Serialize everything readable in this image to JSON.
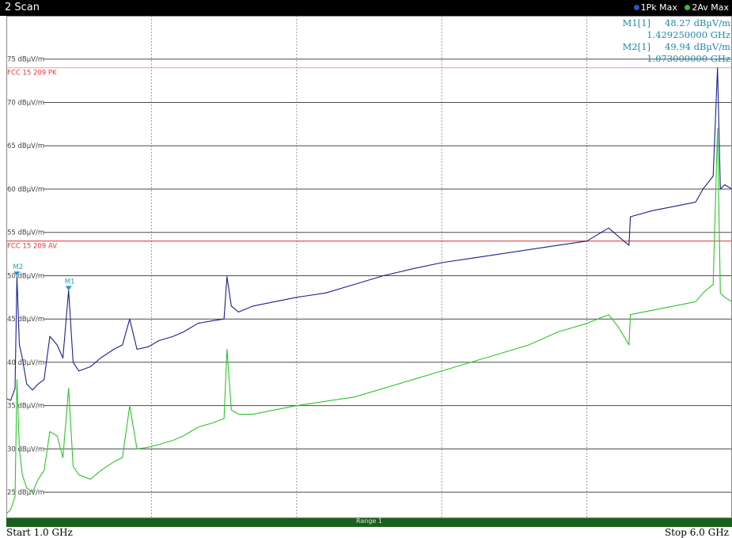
{
  "window": {
    "title": "2 Scan"
  },
  "legend": [
    {
      "label": "1Pk Max",
      "color": "#2d55c8"
    },
    {
      "label": "2Av Max",
      "color": "#35b835"
    }
  ],
  "markers": [
    {
      "label": "M1[1]",
      "level": "48.27 dBµV/m",
      "frequency": "1.429250000 GHz"
    },
    {
      "label": "M2[1]",
      "level": "49.94 dBµV/m",
      "frequency": "1.073000000 GHz"
    }
  ],
  "footer": {
    "start": "Start 1.0 GHz",
    "stop": "Stop 6.0 GHz",
    "range": "Range 1"
  },
  "colors": {
    "peak_trace": "#1a1f8c",
    "avg_trace": "#2ec42e",
    "limit_line": "#e03a3a",
    "marker": "#1e9fc0",
    "grid": "#555555"
  },
  "chart_data": {
    "type": "line",
    "xlabel": "",
    "ylabel": "",
    "xlim": [
      1.0,
      6.0
    ],
    "x_unit": "GHz",
    "ylim": [
      22,
      80
    ],
    "y_unit": "dBµV/m",
    "yticks": [
      75,
      70,
      65,
      60,
      55,
      50,
      45,
      40,
      35,
      30,
      25
    ],
    "ytick_labels": [
      "75 dBµV/m",
      "70 dBµV/m",
      "65 dBµV/m",
      "60 dBµV/m",
      "55 dBµV/m",
      "50 dBµV/m",
      "45 dBµV/m",
      "40 dBµV/m",
      "35 dBµV/m",
      "30 dBµV/m",
      "25 dBµV/m"
    ],
    "grid": true,
    "limit_lines": [
      {
        "name": "FCC 15 209 PK",
        "value": 74
      },
      {
        "name": "FCC 15 209 AV",
        "value": 54
      }
    ],
    "markers": [
      {
        "name": "M1",
        "x": 1.42925,
        "y": 48.27
      },
      {
        "name": "M2",
        "x": 1.073,
        "y": 49.94
      }
    ],
    "series": [
      {
        "name": "1Pk Max",
        "x": [
          1.0,
          1.03,
          1.06,
          1.073,
          1.09,
          1.11,
          1.14,
          1.18,
          1.22,
          1.26,
          1.3,
          1.35,
          1.39,
          1.42925,
          1.46,
          1.5,
          1.58,
          1.65,
          1.74,
          1.8,
          1.85,
          1.9,
          1.98,
          2.05,
          2.15,
          2.22,
          2.32,
          2.42,
          2.5,
          2.52,
          2.55,
          2.6,
          2.7,
          2.85,
          3.0,
          3.2,
          3.4,
          3.6,
          3.8,
          4.0,
          4.2,
          4.4,
          4.6,
          4.8,
          5.0,
          5.15,
          5.22,
          5.29,
          5.3,
          5.45,
          5.6,
          5.75,
          5.8,
          5.87,
          5.9,
          5.92,
          5.95,
          6.0
        ],
        "y": [
          35.8,
          35.6,
          37.0,
          49.9,
          42.0,
          40.5,
          37.5,
          36.8,
          37.5,
          38.0,
          43.0,
          42.0,
          40.5,
          48.3,
          40.0,
          39.0,
          39.5,
          40.5,
          41.5,
          42.0,
          45.0,
          41.5,
          41.8,
          42.5,
          43.0,
          43.5,
          44.5,
          44.8,
          45.0,
          49.9,
          46.5,
          45.8,
          46.5,
          47.0,
          47.5,
          48.0,
          49.0,
          50.0,
          50.8,
          51.5,
          52.0,
          52.5,
          53.0,
          53.5,
          54.0,
          55.5,
          54.5,
          53.5,
          56.8,
          57.5,
          58.0,
          58.5,
          60.0,
          61.5,
          74.0,
          60.0,
          60.5,
          60.0
        ]
      },
      {
        "name": "2Av Max",
        "x": [
          1.0,
          1.03,
          1.06,
          1.073,
          1.09,
          1.11,
          1.14,
          1.18,
          1.22,
          1.26,
          1.3,
          1.35,
          1.39,
          1.42925,
          1.46,
          1.5,
          1.58,
          1.65,
          1.74,
          1.8,
          1.85,
          1.9,
          1.98,
          2.05,
          2.15,
          2.22,
          2.32,
          2.42,
          2.5,
          2.52,
          2.55,
          2.6,
          2.7,
          2.85,
          3.0,
          3.2,
          3.4,
          3.6,
          3.8,
          4.0,
          4.2,
          4.4,
          4.6,
          4.8,
          5.0,
          5.15,
          5.22,
          5.29,
          5.3,
          5.45,
          5.6,
          5.75,
          5.8,
          5.87,
          5.9,
          5.92,
          5.95,
          6.0
        ],
        "y": [
          22.5,
          23.0,
          24.5,
          38.0,
          30.0,
          27.0,
          25.5,
          25.0,
          26.5,
          27.5,
          32.0,
          31.5,
          29.0,
          37.0,
          28.0,
          27.0,
          26.5,
          27.5,
          28.5,
          29.0,
          35.0,
          30.0,
          30.2,
          30.5,
          31.0,
          31.5,
          32.5,
          33.0,
          33.5,
          41.5,
          34.5,
          34.0,
          34.0,
          34.5,
          35.0,
          35.5,
          36.0,
          37.0,
          38.0,
          39.0,
          40.0,
          41.0,
          42.0,
          43.5,
          44.5,
          45.5,
          44.0,
          42.0,
          45.5,
          46.0,
          46.5,
          47.0,
          48.0,
          49.0,
          67.0,
          48.0,
          47.5,
          47.0
        ]
      }
    ]
  }
}
